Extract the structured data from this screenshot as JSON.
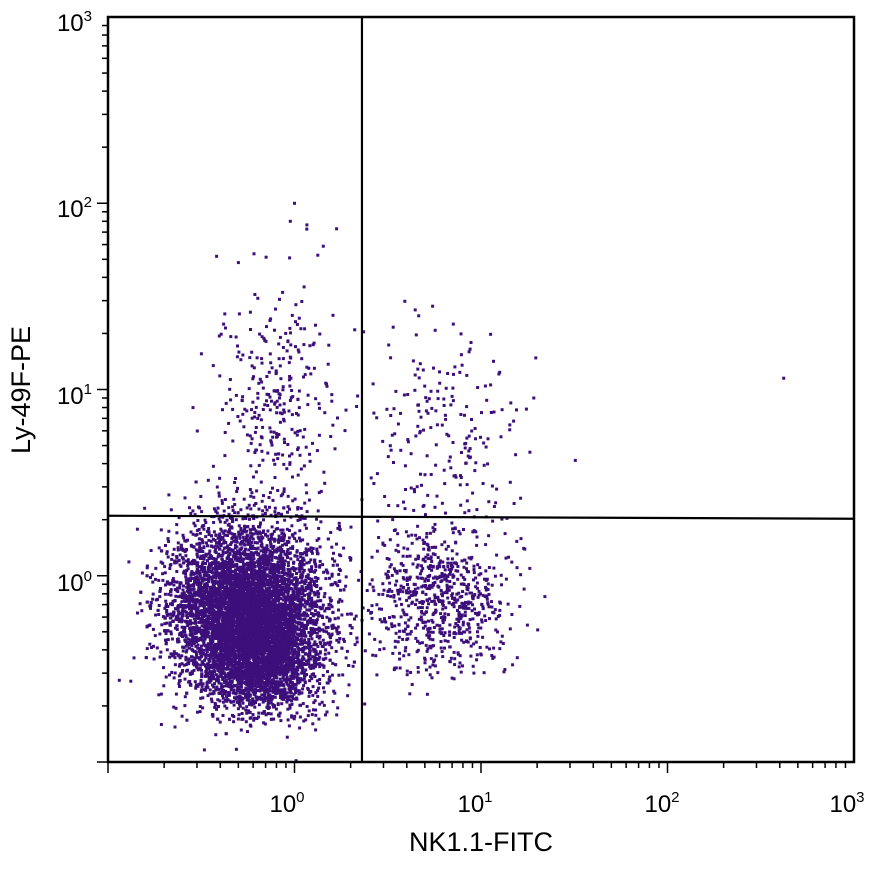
{
  "chart_data": {
    "type": "scatter",
    "xlabel": "NK1.1-FITC",
    "ylabel": "Ly-49F-PE",
    "x_scale": "log",
    "y_scale": "log",
    "xlim": [
      0.1,
      1000
    ],
    "ylim": [
      0.1,
      1000
    ],
    "x_ticks": [
      {
        "base": "10",
        "exp": "0",
        "value": 1
      },
      {
        "base": "10",
        "exp": "1",
        "value": 10
      },
      {
        "base": "10",
        "exp": "2",
        "value": 100
      },
      {
        "base": "10",
        "exp": "3",
        "value": 1000
      }
    ],
    "y_ticks": [
      {
        "base": "10",
        "exp": "0",
        "value": 1
      },
      {
        "base": "10",
        "exp": "1",
        "value": 10
      },
      {
        "base": "10",
        "exp": "2",
        "value": 100
      },
      {
        "base": "10",
        "exp": "3",
        "value": 1000
      }
    ],
    "quadrant_gates": {
      "x": 2.3,
      "y": 2.1
    },
    "point_color": "#3d0f7a",
    "grid": false,
    "series": [
      {
        "populations": [
          {
            "center_x": 0.55,
            "center_y": 0.65,
            "spread_x_decades": 0.2,
            "spread_y_decades": 0.22,
            "count": 6500
          },
          {
            "center_x": 0.7,
            "center_y": 0.35,
            "spread_x_decades": 0.14,
            "spread_y_decades": 0.14,
            "count": 1500
          },
          {
            "center_x": 6.0,
            "center_y": 0.75,
            "spread_x_decades": 0.18,
            "spread_y_decades": 0.2,
            "count": 750
          },
          {
            "center_x": 0.8,
            "center_y": 8.0,
            "spread_x_decades": 0.16,
            "spread_y_decades": 0.33,
            "count": 320
          },
          {
            "center_x": 6.0,
            "center_y": 6.0,
            "spread_x_decades": 0.22,
            "spread_y_decades": 0.28,
            "count": 200
          }
        ],
        "points": [
          {
            "x": 1.0,
            "y": 100
          },
          {
            "x": 0.95,
            "y": 80
          },
          {
            "x": 420,
            "y": 11.5
          },
          {
            "x": 0.5,
            "y": 48
          },
          {
            "x": 5.5,
            "y": 28
          }
        ]
      }
    ]
  }
}
